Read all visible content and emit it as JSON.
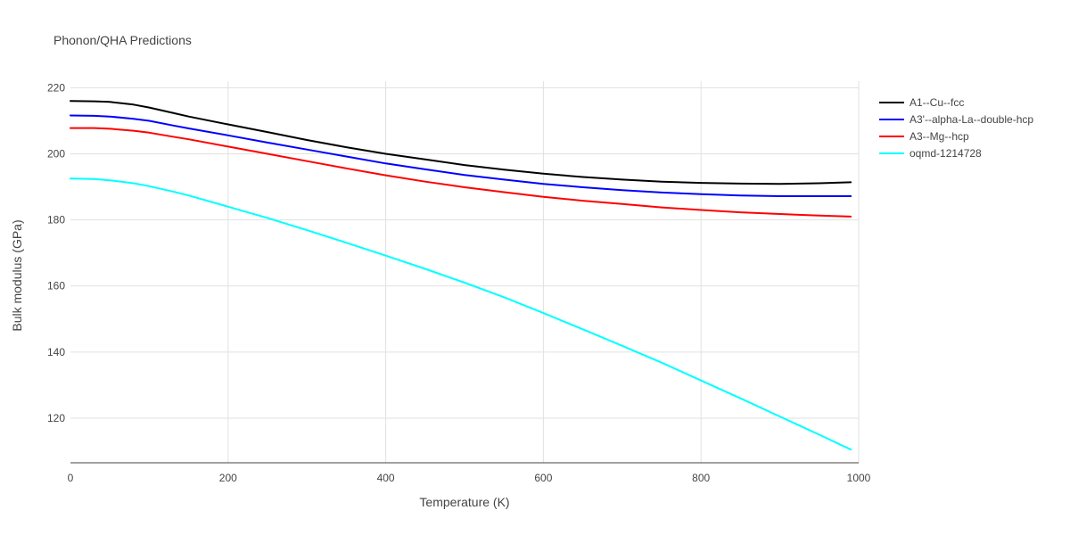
{
  "chart_data": {
    "type": "line",
    "title": "Phonon/QHA Predictions",
    "xlabel": "Temperature (K)",
    "ylabel": "Bulk modulus (GPa)",
    "xlim": [
      0,
      1000
    ],
    "ylim": [
      106.5,
      222
    ],
    "xticks": [
      0,
      200,
      400,
      600,
      800,
      1000
    ],
    "yticks": [
      120,
      140,
      160,
      180,
      200,
      220
    ],
    "grid": true,
    "legend_position": "top-right",
    "series": [
      {
        "name": "A1--Cu--fcc",
        "color": "#000000",
        "x": [
          0,
          30,
          50,
          80,
          100,
          130,
          150,
          200,
          250,
          300,
          350,
          400,
          450,
          500,
          550,
          600,
          650,
          700,
          750,
          800,
          850,
          900,
          950,
          990
        ],
        "y": [
          216.0,
          215.9,
          215.7,
          214.9,
          214.0,
          212.4,
          211.3,
          208.9,
          206.6,
          204.2,
          202.0,
          200.0,
          198.3,
          196.6,
          195.2,
          194.0,
          193.0,
          192.2,
          191.6,
          191.2,
          191.0,
          190.9,
          191.1,
          191.4
        ]
      },
      {
        "name": "A3'--alpha-La--double-hcp",
        "color": "#0000ff",
        "x": [
          0,
          30,
          50,
          80,
          100,
          130,
          150,
          200,
          250,
          300,
          350,
          400,
          450,
          500,
          550,
          600,
          650,
          700,
          750,
          800,
          850,
          900,
          950,
          990
        ],
        "y": [
          211.6,
          211.5,
          211.3,
          210.6,
          210.0,
          208.6,
          207.7,
          205.6,
          203.4,
          201.3,
          199.2,
          197.1,
          195.3,
          193.6,
          192.2,
          190.9,
          189.9,
          189.0,
          188.3,
          187.8,
          187.4,
          187.2,
          187.2,
          187.2
        ]
      },
      {
        "name": "A3--Mg--hcp",
        "color": "#ff0000",
        "x": [
          0,
          30,
          50,
          80,
          100,
          130,
          150,
          200,
          250,
          300,
          350,
          400,
          450,
          500,
          550,
          600,
          650,
          700,
          750,
          800,
          850,
          900,
          950,
          990
        ],
        "y": [
          207.8,
          207.8,
          207.6,
          207.0,
          206.4,
          205.2,
          204.4,
          202.2,
          200.0,
          197.8,
          195.6,
          193.5,
          191.6,
          189.9,
          188.4,
          187.0,
          185.8,
          184.8,
          183.8,
          183.0,
          182.3,
          181.8,
          181.3,
          181.0
        ]
      },
      {
        "name": "oqmd-1214728",
        "color": "#00ffff",
        "x": [
          0,
          30,
          50,
          80,
          100,
          130,
          150,
          200,
          250,
          300,
          350,
          400,
          450,
          500,
          550,
          600,
          650,
          700,
          750,
          800,
          850,
          900,
          950,
          990
        ],
        "y": [
          192.5,
          192.4,
          192.0,
          191.1,
          190.2,
          188.6,
          187.4,
          184.0,
          180.6,
          176.9,
          173.1,
          169.2,
          165.2,
          161.0,
          156.6,
          151.8,
          146.9,
          141.9,
          136.8,
          131.4,
          126.0,
          120.5,
          115.0,
          110.5
        ]
      }
    ]
  }
}
